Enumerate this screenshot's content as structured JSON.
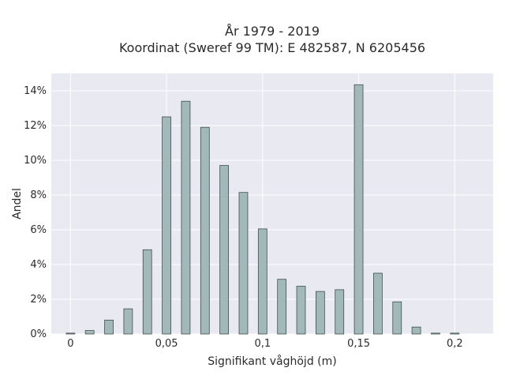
{
  "chart_data": {
    "type": "bar",
    "title_line1": "År 1979 - 2019",
    "title_line2": "Koordinat (Sweref 99 TM): E 482587, N 6205456",
    "xlabel": "Signifikant våghöjd (m)",
    "ylabel": "Andel",
    "xlim": [
      -0.01,
      0.22
    ],
    "ylim": [
      0,
      15
    ],
    "xticks": [
      {
        "value": 0,
        "label": "0"
      },
      {
        "value": 0.05,
        "label": "0,05"
      },
      {
        "value": 0.1,
        "label": "0,1"
      },
      {
        "value": 0.15,
        "label": "0,15"
      },
      {
        "value": 0.2,
        "label": "0,2"
      }
    ],
    "yticks": [
      {
        "value": 0,
        "label": "0%"
      },
      {
        "value": 2,
        "label": "2%"
      },
      {
        "value": 4,
        "label": "4%"
      },
      {
        "value": 6,
        "label": "6%"
      },
      {
        "value": 8,
        "label": "8%"
      },
      {
        "value": 10,
        "label": "10%"
      },
      {
        "value": 12,
        "label": "12%"
      },
      {
        "value": 14,
        "label": "14%"
      }
    ],
    "bar_width": 0.0045,
    "x": [
      0.0,
      0.01,
      0.02,
      0.03,
      0.04,
      0.05,
      0.06,
      0.07,
      0.08,
      0.09,
      0.1,
      0.11,
      0.12,
      0.13,
      0.14,
      0.15,
      0.16,
      0.17,
      0.18,
      0.19,
      0.2
    ],
    "values": [
      0.05,
      0.2,
      0.8,
      1.45,
      4.85,
      12.5,
      13.4,
      11.9,
      9.7,
      8.15,
      6.05,
      3.15,
      2.75,
      2.45,
      2.55,
      14.35,
      3.5,
      1.85,
      0.4,
      0.05,
      0.05
    ],
    "colors": {
      "bar_fill": "#a3b8b8",
      "bar_stroke": "#3f4f4f",
      "plot_bg": "#e9e9f2",
      "grid": "#ffffff"
    },
    "grid": true
  }
}
